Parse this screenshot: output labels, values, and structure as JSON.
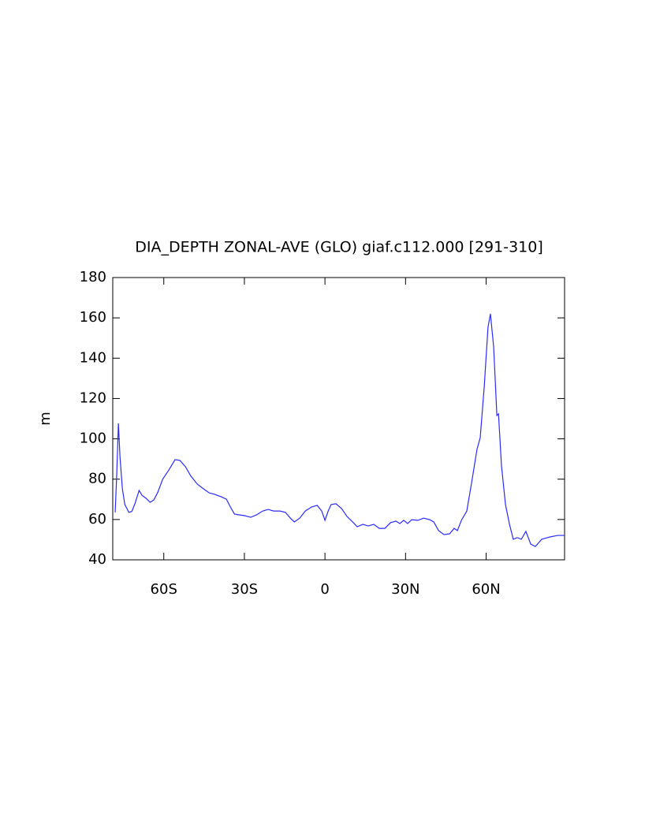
{
  "chart_data": {
    "type": "line",
    "title": "DIA_DEPTH ZONAL-AVE (GLO) giaf.c112.000 [291-310]",
    "y_label": "m",
    "x": [
      -78.1,
      -77.5,
      -76.9,
      -76.3,
      -75.4,
      -74.5,
      -73,
      -71.9,
      -70.7,
      -69.2,
      -68.1,
      -66.6,
      -65.1,
      -63.7,
      -62.2,
      -60.4,
      -58.1,
      -55.8,
      -54,
      -51.9,
      -49.9,
      -47.5,
      -45.2,
      -43.1,
      -41.1,
      -38.7,
      -36.7,
      -35.2,
      -33.7,
      -32,
      -29.9,
      -27.6,
      -25.5,
      -23.2,
      -21.1,
      -19.1,
      -16.7,
      -14.7,
      -12.9,
      -11.4,
      -9.4,
      -7.3,
      -5,
      -2.9,
      -1.2,
      0,
      1.2,
      2.3,
      4.1,
      6.2,
      8.2,
      10.3,
      12,
      14.1,
      16.1,
      18.2,
      20.2,
      22.3,
      24.4,
      26.4,
      27.9,
      29.3,
      30.8,
      32.3,
      34.6,
      36.7,
      39,
      40.5,
      42.3,
      44.3,
      46.4,
      48.1,
      49.3,
      50.8,
      52.8,
      54.6,
      56.6,
      57.8,
      59.3,
      60.7,
      61.6,
      62.8,
      64,
      64.6,
      65.7,
      67.2,
      68.7,
      70.1,
      71.6,
      73.1,
      74.8,
      76.6,
      78.3,
      80.7,
      83.6,
      86.6,
      89.2
    ],
    "series": [
      {
        "name": "DIA_DEPTH",
        "color": "#2a2aff",
        "values": [
          63.5,
          83,
          107.7,
          90.8,
          75,
          67.4,
          63.5,
          64,
          68,
          74.4,
          72,
          70.5,
          68.5,
          69.7,
          73.6,
          80,
          84.6,
          89.7,
          89.3,
          86.1,
          81.5,
          77.5,
          75.2,
          73.2,
          72.5,
          71.3,
          70.1,
          66.2,
          62.7,
          62.3,
          61.9,
          61.1,
          62.3,
          64.2,
          65,
          64.2,
          64.2,
          63.5,
          60.7,
          58.8,
          60.7,
          64.2,
          66.2,
          67,
          64.2,
          59.6,
          64.2,
          67.4,
          67.8,
          65.4,
          61.5,
          58.8,
          56.4,
          57.6,
          56.8,
          57.6,
          55.6,
          55.6,
          58.4,
          59.2,
          58,
          59.6,
          58,
          59.9,
          59.6,
          60.7,
          59.9,
          58.8,
          54.5,
          52.5,
          52.9,
          55.6,
          54.5,
          59.6,
          64.2,
          78.3,
          94.8,
          100.6,
          126,
          155.4,
          162,
          145.6,
          111.6,
          112.4,
          86.9,
          67.4,
          57.6,
          50.2,
          51,
          50.2,
          54.1,
          47.8,
          46.6,
          50.2,
          51.3,
          52.1,
          52.1
        ]
      }
    ],
    "xlim": [
      -79,
      89.2
    ],
    "xticks": [
      {
        "value": -60,
        "label": "60S"
      },
      {
        "value": -30,
        "label": "30S"
      },
      0,
      {
        "value": 30,
        "label": "30N"
      },
      {
        "value": 60,
        "label": "60N"
      }
    ],
    "ylim": [
      40,
      180
    ],
    "yticks": [
      40,
      60,
      80,
      100,
      120,
      140,
      160,
      180
    ]
  }
}
